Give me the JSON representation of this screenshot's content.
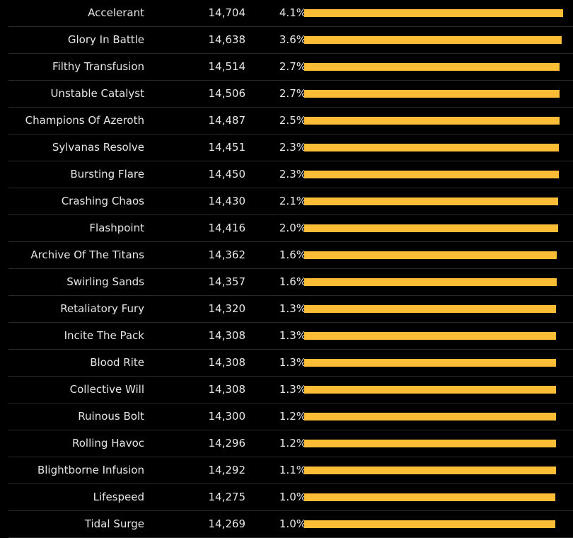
{
  "chart_data": {
    "type": "bar",
    "orientation": "horizontal",
    "bar_color": "#fbbd35",
    "background": "#000000",
    "text_color": "#e6e6e6",
    "grid": false,
    "rows": [
      {
        "label": "Accelerant",
        "value": "14,704",
        "percent": "4.1%",
        "num": 14704
      },
      {
        "label": "Glory In Battle",
        "value": "14,638",
        "percent": "3.6%",
        "num": 14638
      },
      {
        "label": "Filthy Transfusion",
        "value": "14,514",
        "percent": "2.7%",
        "num": 14514
      },
      {
        "label": "Unstable Catalyst",
        "value": "14,506",
        "percent": "2.7%",
        "num": 14506
      },
      {
        "label": "Champions Of Azeroth",
        "value": "14,487",
        "percent": "2.5%",
        "num": 14487
      },
      {
        "label": "Sylvanas Resolve",
        "value": "14,451",
        "percent": "2.3%",
        "num": 14451
      },
      {
        "label": "Bursting Flare",
        "value": "14,450",
        "percent": "2.3%",
        "num": 14450
      },
      {
        "label": "Crashing Chaos",
        "value": "14,430",
        "percent": "2.1%",
        "num": 14430
      },
      {
        "label": "Flashpoint",
        "value": "14,416",
        "percent": "2.0%",
        "num": 14416
      },
      {
        "label": "Archive Of The Titans",
        "value": "14,362",
        "percent": "1.6%",
        "num": 14362
      },
      {
        "label": "Swirling Sands",
        "value": "14,357",
        "percent": "1.6%",
        "num": 14357
      },
      {
        "label": "Retaliatory Fury",
        "value": "14,320",
        "percent": "1.3%",
        "num": 14320
      },
      {
        "label": "Incite The Pack",
        "value": "14,308",
        "percent": "1.3%",
        "num": 14308
      },
      {
        "label": "Blood Rite",
        "value": "14,308",
        "percent": "1.3%",
        "num": 14308
      },
      {
        "label": "Collective Will",
        "value": "14,308",
        "percent": "1.3%",
        "num": 14308
      },
      {
        "label": "Ruinous Bolt",
        "value": "14,300",
        "percent": "1.2%",
        "num": 14300
      },
      {
        "label": "Rolling Havoc",
        "value": "14,296",
        "percent": "1.2%",
        "num": 14296
      },
      {
        "label": "Blightborne Infusion",
        "value": "14,292",
        "percent": "1.1%",
        "num": 14292
      },
      {
        "label": "Lifespeed",
        "value": "14,275",
        "percent": "1.0%",
        "num": 14275
      },
      {
        "label": "Tidal Surge",
        "value": "14,269",
        "percent": "1.0%",
        "num": 14269
      }
    ]
  }
}
